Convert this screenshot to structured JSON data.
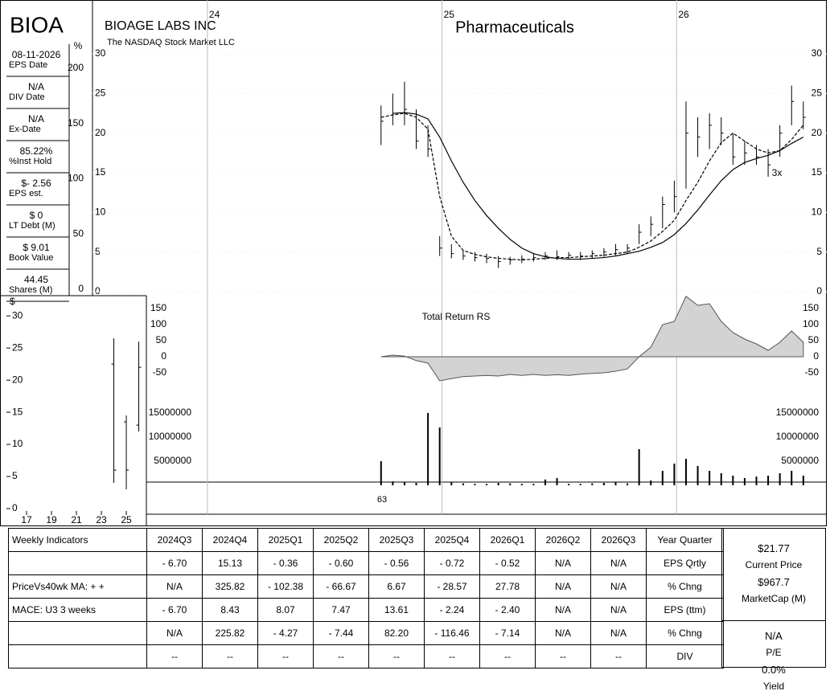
{
  "sidebar": {
    "ticker": "BIOA",
    "items": [
      {
        "value": "08-11-2026",
        "label": "EPS Date"
      },
      {
        "value": "N/A",
        "label": "DIV Date"
      },
      {
        "value": "N/A",
        "label": "Ex-Date"
      },
      {
        "value": "85.22%",
        "label": "%Inst Hold"
      },
      {
        "value": "$- 2.56",
        "label": "EPS est."
      },
      {
        "value": "$ 0",
        "label": "LT Debt (M)"
      },
      {
        "value": "$ 9.01",
        "label": "Book Value"
      },
      {
        "value": "44.45",
        "label": "Shares (M)"
      }
    ],
    "pct_label": "%",
    "pct_ticks": [
      0,
      50,
      100,
      150,
      200
    ]
  },
  "header": {
    "company": "BIOAGE LABS INC",
    "exchange": "The NASDAQ Stock Market LLC",
    "marker_3x": "3x",
    "marker_63": "63"
  },
  "chart_data": [
    {
      "type": "ohlc",
      "title": "Pharmaceuticals",
      "color": "#000000",
      "x": [
        24.74,
        24.79,
        24.84,
        24.89,
        24.94,
        24.99,
        25.04,
        25.09,
        25.14,
        25.19,
        25.24,
        25.29,
        25.34,
        25.39,
        25.44,
        25.49,
        25.54,
        25.59,
        25.64,
        25.69,
        25.74,
        25.79,
        25.84,
        25.89,
        25.94,
        25.99,
        26.04,
        26.09,
        26.14,
        26.19,
        26.24,
        26.29,
        26.34,
        26.39,
        26.44,
        26.49,
        26.54
      ],
      "high": [
        23.5,
        25,
        26.5,
        23,
        21,
        7,
        6,
        5.2,
        5,
        4.8,
        4.5,
        4.4,
        4.6,
        4.8,
        5,
        5.2,
        5,
        5,
        5.2,
        5.5,
        6,
        6,
        8.5,
        9.5,
        12,
        14,
        24,
        22,
        22.5,
        22,
        20,
        19,
        18.5,
        18,
        21,
        26,
        24
      ],
      "low": [
        18.5,
        21,
        21,
        18,
        17,
        4.5,
        4.2,
        4,
        3.8,
        3.6,
        3,
        3.4,
        3.6,
        3.8,
        4,
        4,
        4.1,
        4,
        4.2,
        4.4,
        4.6,
        4.8,
        6,
        7,
        8,
        10,
        13,
        17,
        18,
        18.5,
        16,
        16,
        16,
        14.5,
        17,
        21,
        20.5
      ],
      "close": [
        21.5,
        22.5,
        23,
        19,
        18,
        5.5,
        4.8,
        4.5,
        4.3,
        4.2,
        3.8,
        4,
        4.1,
        4.3,
        4.5,
        4.4,
        4.6,
        4.5,
        4.8,
        5,
        5.3,
        5.5,
        7.5,
        8.5,
        11,
        12,
        20,
        19.5,
        21,
        20,
        17,
        17.5,
        17,
        16,
        20,
        24,
        22
      ],
      "lines": [
        {
          "color": "#000000",
          "dash": true,
          "values": [
            22,
            22.3,
            22.5,
            22,
            20.5,
            12,
            7,
            5.2,
            4.7,
            4.4,
            4.2,
            4.1,
            4.0,
            4.1,
            4.2,
            4.3,
            4.3,
            4.4,
            4.5,
            4.6,
            4.8,
            5.0,
            5.6,
            6.4,
            7.6,
            9.0,
            11.5,
            13.8,
            16.5,
            18.8,
            20.0,
            19.0,
            18.0,
            17.5,
            17.8,
            19.2,
            21.0
          ]
        },
        {
          "color": "#000000",
          "dash": false,
          "values": [
            null,
            22.5,
            22.6,
            22.4,
            21.8,
            19.5,
            16.5,
            13.8,
            11.5,
            9.6,
            8.0,
            6.6,
            5.5,
            4.8,
            4.4,
            4.2,
            4.1,
            4.1,
            4.2,
            4.3,
            4.5,
            4.8,
            5.1,
            5.6,
            6.2,
            7.2,
            8.6,
            10.3,
            12.2,
            14.0,
            15.4,
            16.3,
            16.8,
            17.2,
            17.8,
            18.7,
            19.5
          ]
        }
      ],
      "xlim": [
        23.51,
        26.64
      ],
      "xticks": [
        24,
        25,
        26
      ],
      "ylim": [
        0,
        36.8
      ],
      "yticks": [
        0,
        5,
        10,
        15,
        20,
        25,
        30
      ]
    },
    {
      "type": "area",
      "title": "Total Return RS",
      "color": "#d3d3d3",
      "values": [
        0,
        5,
        2,
        -12,
        -20,
        -75,
        -68,
        -62,
        -60,
        -58,
        -60,
        -55,
        -58,
        -55,
        -58,
        -56,
        -58,
        -54,
        -52,
        -50,
        -45,
        -38,
        0,
        30,
        100,
        110,
        188,
        160,
        165,
        110,
        75,
        55,
        40,
        20,
        45,
        80,
        45
      ],
      "ylim": [
        -115,
        190
      ],
      "yticks": [
        -50,
        0,
        50,
        100,
        150
      ]
    },
    {
      "type": "bar",
      "color": "#000000",
      "values": [
        5000000,
        800000,
        600000,
        500000,
        15000000,
        12000000,
        600000,
        400000,
        300000,
        300000,
        500000,
        400000,
        300000,
        300000,
        1200000,
        1500000,
        300000,
        300000,
        400000,
        500000,
        600000,
        400000,
        7500000,
        1000000,
        3000000,
        4500000,
        5500000,
        4000000,
        3000000,
        2500000,
        2000000,
        1500000,
        1800000,
        2000000,
        2500000,
        3000000,
        2000000
      ],
      "ylim": [
        0,
        19000000
      ],
      "yticks": [
        5000000,
        10000000,
        15000000
      ]
    },
    {
      "type": "ohlc",
      "y_label": "$",
      "color": "#000000",
      "x": [
        24,
        25,
        26
      ],
      "open": [
        22.5,
        13.5,
        13
      ],
      "high": [
        26.5,
        14.5,
        26
      ],
      "low": [
        4,
        3,
        12
      ],
      "close": [
        6,
        6,
        22
      ],
      "xlim": [
        14.87,
        26.61
      ],
      "xticks": [
        17,
        19,
        21,
        23,
        25
      ],
      "ylim": [
        0,
        32.9
      ],
      "yticks": [
        0,
        5,
        10,
        15,
        20,
        25,
        30
      ]
    }
  ],
  "table": {
    "headers": [
      "Weekly Indicators",
      "2024Q3",
      "2024Q4",
      "2025Q1",
      "2025Q2",
      "2025Q3",
      "2025Q4",
      "2026Q1",
      "2026Q2",
      "2026Q3",
      "Year Quarter"
    ],
    "rows": [
      {
        "cells": [
          "- 6.70",
          "15.13",
          "- 0.36",
          "- 0.60",
          "- 0.56",
          "- 0.72",
          "- 0.52",
          "N/A",
          "N/A"
        ],
        "metric": "EPS Qrtly"
      },
      {
        "label": "PriceVs40wk MA:  + +",
        "cells": [
          "N/A",
          "325.82",
          "- 102.38",
          "- 66.67",
          "6.67",
          "- 28.57",
          "27.78",
          "N/A",
          "N/A"
        ],
        "metric": "% Chng"
      },
      {
        "label": "MACE: U3  3 weeks",
        "cells": [
          "- 6.70",
          "8.43",
          "8.07",
          "7.47",
          "13.61",
          "- 2.24",
          "- 2.40",
          "N/A",
          "N/A"
        ],
        "metric": "EPS (ttm)"
      },
      {
        "cells": [
          "N/A",
          "225.82",
          "- 4.27",
          "- 7.44",
          "82.20",
          "- 116.46",
          "- 7.14",
          "N/A",
          "N/A"
        ],
        "metric": "% Chng"
      },
      {
        "cells": [
          "--",
          "--",
          "--",
          "--",
          "--",
          "--",
          "--",
          "--",
          "--"
        ],
        "metric": "DIV"
      }
    ]
  },
  "summary": [
    {
      "value": "$21.77",
      "label": "Current Price"
    },
    {
      "value": "$967.7",
      "label": "MarketCap (M)"
    },
    {
      "value": "N/A",
      "label": "P/E"
    },
    {
      "value": "0.0%",
      "label": "Yield"
    }
  ]
}
